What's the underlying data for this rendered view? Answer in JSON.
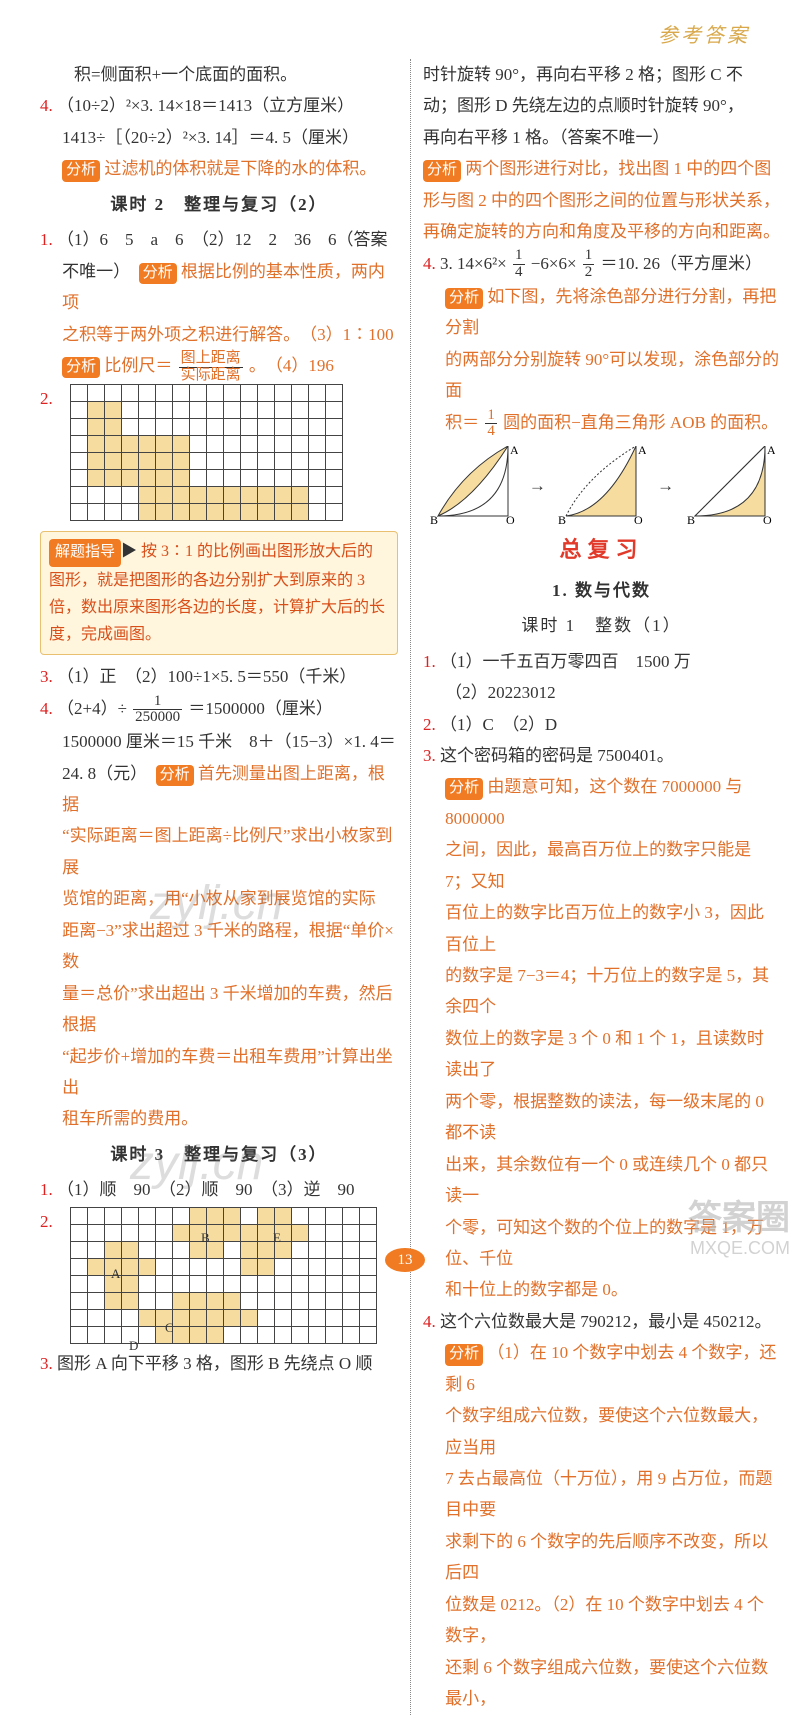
{
  "header": "参考答案",
  "page_number": "13",
  "colors": {
    "red": "#d22222",
    "blue": "#2288cc",
    "orange_pill": "#f07b22",
    "orange_text": "#e0702a",
    "tip_bg": "#fff6dd",
    "tip_border": "#e8c070",
    "grid_fill": "#f6dd9f",
    "big_red": "#e23a2a",
    "header_gold": "#d9a84a"
  },
  "pill_fx": "分析",
  "pill_tip": "解题指导",
  "left": {
    "l1": "积=侧面积+一个底面的面积。",
    "l2_num": "4.",
    "l2a": "（10÷2）²×3. 14×18＝1413（立方厘米）",
    "l2b": "1413÷［（20÷2）²×3. 14］＝4. 5（厘米）",
    "l2_fx": "过滤机的体积就是下降的水的体积。",
    "sec1": "课时 2　整理与复习（2）",
    "q1_num": "1.",
    "q1a": "（1）6　5　a　6　（2）12　2　36　6（答案",
    "q1b": "不唯一）",
    "q1_fx": "根据比例的基本性质，两内项",
    "q1c": "之积等于两外项之积进行解答。　（3）1∶100",
    "q1d_pre": "比例尺＝",
    "q1d_top": "图上距离",
    "q1d_bot": "实际距离",
    "q1d_post": "。　（4）196",
    "q2_num": "2.",
    "tip": "按 3∶1 的比例画出图形放大后的图形，就是把图形的各边分别扩大到原来的 3 倍，数出原来图形各边的长度，计算扩大后的长度，完成画图。",
    "q3_num": "3.",
    "q3": "（1）正　（2）100÷1×5. 5＝550（千米）",
    "q4_num": "4.",
    "q4a_pre": "（2+4）÷",
    "q4a_top": "1",
    "q4a_bot": "250000",
    "q4a_post": "＝1500000（厘米）",
    "q4b": "1500000 厘米＝15 千米　8＋（15−3）×1. 4＝",
    "q4c": "24. 8（元）",
    "q4_fx": "首先测量出图上距离，根据",
    "q4d": "“实际距离＝图上距离÷比例尺”求出小枚家到展",
    "q4e": "览馆的距离，用“小枚从家到展览馆的实际",
    "q4f": "距离−3”求出超过 3 千米的路程，根据“单价×数",
    "q4g": "量＝总价”求出超出 3 千米增加的车费，然后根据",
    "q4h": "“起步价+增加的车费＝出租车费用”计算出坐出",
    "q4i": "租车所需的费用。",
    "sec2": "课时 3　整理与复习（3）",
    "s2q1_num": "1.",
    "s2q1": "（1）顺　90　（2）顺　90　（3）逆　90",
    "s2q2_num": "2.",
    "s2q3_num": "3.",
    "s2q3": "图形 A 向下平移 3 格，图形 B 先绕点 O 顺",
    "grid1": {
      "rows": 8,
      "cols": 16,
      "cells": [
        "................",
        ".ff.............",
        ".ff.............",
        ".ffffff.........",
        ".ffffff.........",
        ".ffffff.........",
        "....ffffffffff..",
        "....ffffffffff.."
      ]
    },
    "grid2": {
      "rows": 8,
      "cols": 18,
      "cells": [
        ".......fff.ff.....",
        "......ffffffff....",
        "..ff...ff.fff.....",
        ".ffff.....ff......",
        "..ff..............",
        "..ff..ffff........",
        "....fffffff.......",
        ".....ffff........."
      ],
      "labels": {
        "A": [
          3,
          2
        ],
        "B": [
          1,
          7
        ],
        "C": [
          6,
          5
        ],
        "D": [
          7,
          3
        ],
        "E": [
          1,
          11
        ]
      }
    }
  },
  "right": {
    "r1": "时针旋转 90°，再向右平移 2 格；图形 C 不",
    "r2": "动；图形 D 先绕左边的点顺时针旋转 90°，",
    "r3": "再向右平移 1 格。（答案不唯一）",
    "r_fx1": "两个图形进行对比，找出图 1 中的四个图",
    "r4": "形与图 2 中的四个图形之间的位置与形状关系，",
    "r5": "再确定旋转的方向和角度及平移的方向和距离。",
    "rq4_num": "4.",
    "rq4_pre": "3. 14×6²×",
    "rq4_f1t": "1",
    "rq4_f1b": "4",
    "rq4_mid": "−6×6×",
    "rq4_f2t": "1",
    "rq4_f2b": "2",
    "rq4_post": "＝10. 26（平方厘米）",
    "r_fx2": "如下图，先将涂色部分进行分割，再把分割",
    "r6": "的两部分分别旋转 90°可以发现，涂色部分的面",
    "r7_pre": "积＝",
    "r7_ft": "1",
    "r7_fb": "4",
    "r7_post": "圆的面积−直角三角形 AOB 的面积。",
    "big": "总复习",
    "sec3": "1. 数与代数",
    "sec3b": "课时 1　整数（1）",
    "rq1_num": "1.",
    "rq1a": "（1）一千五百万零四百　1500 万",
    "rq1b": "（2）20223012",
    "rq2_num": "2.",
    "rq2": "（1）C　（2）D",
    "rq3_num": "3.",
    "rq3": "这个密码箱的密码是 7500401。",
    "r_fx3": "由题意可知，这个数在 7000000 与 8000000",
    "r8": "之间，因此，最高百万位上的数字只能是 7；又知",
    "r9": "百位上的数字比百万位上的数字小 3，因此百位上",
    "r10": "的数字是 7−3＝4；十万位上的数字是 5，其余四个",
    "r11": "数位上的数字是 3 个 0 和 1 个 1，且读数时读出了",
    "r12": "两个零，根据整数的读法，每一级末尾的 0 都不读",
    "r13": "出来，其余数位有一个 0 或连续几个 0 都只读一",
    "r14": "个零，可知这个数的个位上的数字是 1，万位、千位",
    "r15": "和十位上的数字都是 0。",
    "rq4b_num": "4.",
    "rq4b": "这个六位数最大是 790212，最小是 450212。",
    "r_fx4": "（1）在 10 个数字中划去 4 个数字，还剩 6",
    "r16": "个数字组成六位数，要使这个六位数最大，应当用",
    "r17": "7 去占最高位（十万位），用 9 占万位，而题目中要",
    "r18": "求剩下的 6 个数字的先后顺序不改变，所以后四",
    "r19": "位数是 0212。（2）在 10 个数字中划去 4 个数字，",
    "r20": "还剩 6 个数字组成六位数，要使这个六位数最小，",
    "diagram_labels": {
      "A": "A",
      "B": "B",
      "O": "O",
      "arrow": "→"
    }
  },
  "watermarks": {
    "w1": "zylj.cn",
    "w2": "zylj.cn",
    "brand_top": "答案圈",
    "brand_bot": "MXQE.COM"
  }
}
